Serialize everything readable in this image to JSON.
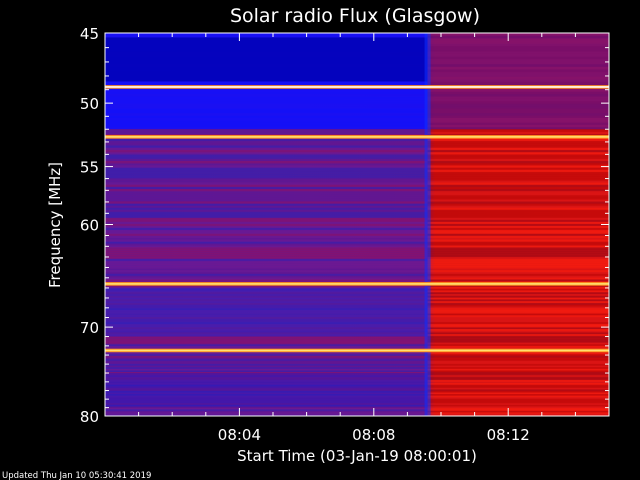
{
  "chart_data": {
    "type": "heatmap",
    "title": "Solar radio Flux (Glasgow)",
    "ylabel": "Frequency [MHz]",
    "xlabel": "Start Time (03-Jan-19 08:00:01)",
    "x_ticks": [
      "08:04",
      "08:08",
      "08:12"
    ],
    "y_ticks": [
      45,
      50,
      55,
      60,
      70,
      80
    ],
    "x_tick_minutes": [
      4,
      8,
      12
    ],
    "xlim_minutes": [
      0,
      15
    ],
    "ylim": [
      45,
      80
    ],
    "y_scale": "log",
    "colormap": "blue-red-yellow",
    "transition_time_minutes": 9.6,
    "bright_bands_mhz": [
      48.8,
      52.6,
      65.6,
      72.5
    ],
    "grid": false
  },
  "footer": {
    "updated": "Updated Thu Jan 10 05:30:41 2019"
  },
  "colors": {
    "background": "#000000",
    "text": "#ffffff",
    "low": "#1010ff",
    "mid": "#c00010",
    "high": "#ffff60"
  }
}
